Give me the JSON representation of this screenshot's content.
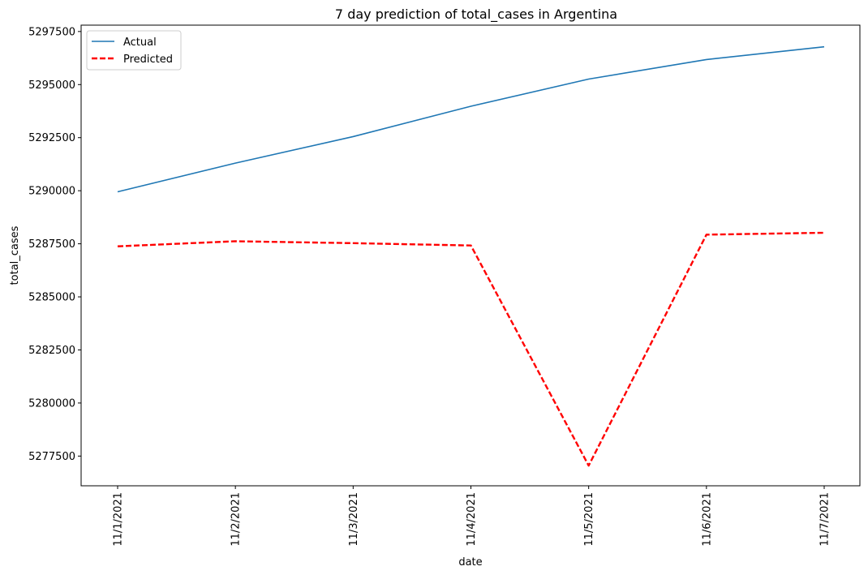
{
  "chart_data": {
    "type": "line",
    "title": "7 day prediction of total_cases in Argentina",
    "xlabel": "date",
    "ylabel": "total_cases",
    "categories": [
      "11/1/2021",
      "11/2/2021",
      "11/3/2021",
      "11/4/2021",
      "11/5/2021",
      "11/6/2021",
      "11/7/2021"
    ],
    "ylim": [
      5276100,
      5297800
    ],
    "yticks": [
      5277500,
      5280000,
      5282500,
      5285000,
      5287500,
      5290000,
      5292500,
      5295000,
      5297500
    ],
    "ytick_labels": [
      "5277500",
      "5280000",
      "5282500",
      "5285000",
      "5287500",
      "5290000",
      "5292500",
      "5295000",
      "5297500"
    ],
    "series": [
      {
        "name": "Actual",
        "color": "#1f77b4",
        "style": "solid",
        "values": [
          5289950,
          5291300,
          5292550,
          5293980,
          5295260,
          5296180,
          5296780
        ]
      },
      {
        "name": "Predicted",
        "color": "#ff0000",
        "style": "dashed",
        "values": [
          5287380,
          5287620,
          5287530,
          5287420,
          5277050,
          5287930,
          5288020
        ]
      }
    ],
    "legend": {
      "position": "top-left",
      "entries": [
        "Actual",
        "Predicted"
      ]
    },
    "grid": false
  }
}
